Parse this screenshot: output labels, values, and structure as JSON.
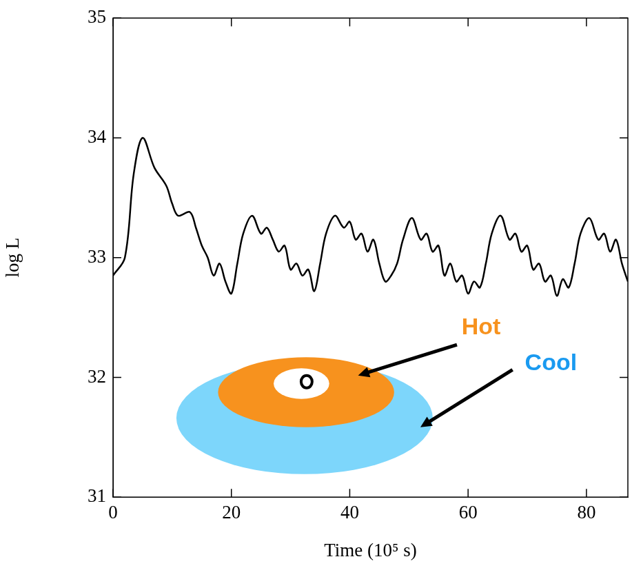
{
  "chart_data": {
    "type": "line",
    "x_label": "Time (10⁵ s)",
    "y_label": "log L",
    "x": [
      0,
      2,
      3.5,
      5,
      7,
      9,
      10,
      11,
      13,
      14,
      15,
      16,
      17,
      18,
      19,
      20,
      21,
      22,
      23.5,
      25,
      26,
      27,
      28,
      29,
      30,
      31,
      32,
      33,
      34,
      35,
      36,
      37.5,
      39,
      40,
      41,
      42,
      43,
      44,
      45,
      46,
      47,
      48,
      49,
      50.5,
      52,
      53,
      54,
      55,
      56,
      57,
      58,
      59,
      60,
      61,
      62,
      63,
      64,
      65.5,
      67,
      68,
      69,
      70,
      71,
      72,
      73,
      74,
      75,
      76,
      77,
      78,
      79,
      80.5,
      82,
      83,
      84,
      85,
      86,
      87
    ],
    "values": [
      32.85,
      33.0,
      33.7,
      34.0,
      33.75,
      33.6,
      33.45,
      33.35,
      33.38,
      33.25,
      33.1,
      33.0,
      32.85,
      32.95,
      32.8,
      32.7,
      32.95,
      33.2,
      33.35,
      33.2,
      33.25,
      33.15,
      33.05,
      33.1,
      32.9,
      32.95,
      32.85,
      32.9,
      32.72,
      32.95,
      33.2,
      33.35,
      33.25,
      33.3,
      33.15,
      33.2,
      33.05,
      33.15,
      32.95,
      32.8,
      32.85,
      32.95,
      33.15,
      33.33,
      33.15,
      33.2,
      33.05,
      33.1,
      32.85,
      32.95,
      32.8,
      32.85,
      32.7,
      32.8,
      32.75,
      32.95,
      33.2,
      33.35,
      33.15,
      33.2,
      33.05,
      33.1,
      32.9,
      32.95,
      32.8,
      32.85,
      32.68,
      32.82,
      32.75,
      32.95,
      33.2,
      33.33,
      33.15,
      33.2,
      33.05,
      33.15,
      32.95,
      32.8
    ],
    "color": "#000000",
    "xlim": [
      0,
      87
    ],
    "xticks": [
      0,
      20,
      40,
      60,
      80
    ],
    "ylim": [
      31,
      35
    ],
    "yticks": [
      31,
      32,
      33,
      34,
      35
    ],
    "grid": false,
    "annotations": [
      "Hot",
      "Cool"
    ]
  }
}
